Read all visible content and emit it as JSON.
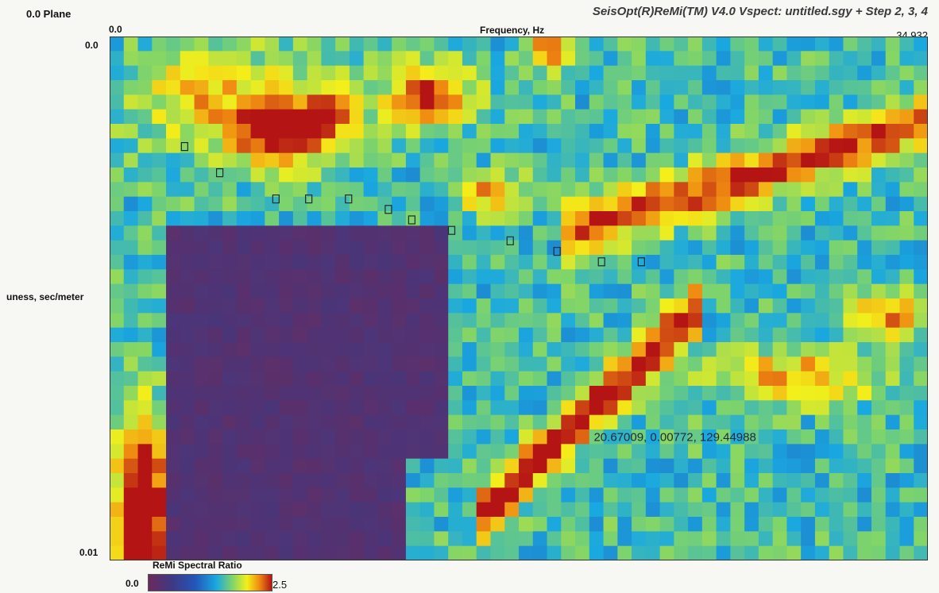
{
  "header": {
    "plane_label": "0.0 Plane",
    "window_title": "SeisOpt(R)ReMi(TM) V4.0 Vspect: untitled.sgy + Step 2, 3, 4"
  },
  "colorbar": {
    "title": "ReMi Spectral Ratio",
    "min_label": "0.0",
    "max_label": "2.5"
  },
  "cursor_readout": "20.67009, 0.00772, 129.44988",
  "chart_data": {
    "type": "heatmap",
    "xlabel": "Frequency, Hz",
    "ylabel": "uness, sec/meter",
    "x_tick_labels": [
      "0.0",
      "34.932"
    ],
    "y_tick_labels": [
      "0.0",
      "0.01"
    ],
    "xlim": [
      0.0,
      34.932
    ],
    "ylim": [
      0.0,
      0.01
    ],
    "y_axis_inverted": true,
    "value_range": [
      0.0,
      2.5
    ],
    "grid_size": [
      58,
      36
    ],
    "colorscale": [
      "#6b2a5c",
      "#3d3a86",
      "#2456b8",
      "#1aa8e0",
      "#7fd46a",
      "#f4ef1a",
      "#f08a12",
      "#b41414"
    ],
    "picks": [
      {
        "x": 3.2,
        "y": 0.0021
      },
      {
        "x": 4.7,
        "y": 0.0026
      },
      {
        "x": 7.1,
        "y": 0.0031
      },
      {
        "x": 8.5,
        "y": 0.0031
      },
      {
        "x": 10.2,
        "y": 0.0031
      },
      {
        "x": 11.9,
        "y": 0.0033
      },
      {
        "x": 12.9,
        "y": 0.0035
      },
      {
        "x": 14.6,
        "y": 0.0037
      },
      {
        "x": 17.1,
        "y": 0.0039
      },
      {
        "x": 19.1,
        "y": 0.0041
      },
      {
        "x": 21.0,
        "y": 0.0043
      },
      {
        "x": 22.7,
        "y": 0.0043
      }
    ],
    "cursor_point": {
      "x": 20.67009,
      "y": 0.00772
    }
  }
}
